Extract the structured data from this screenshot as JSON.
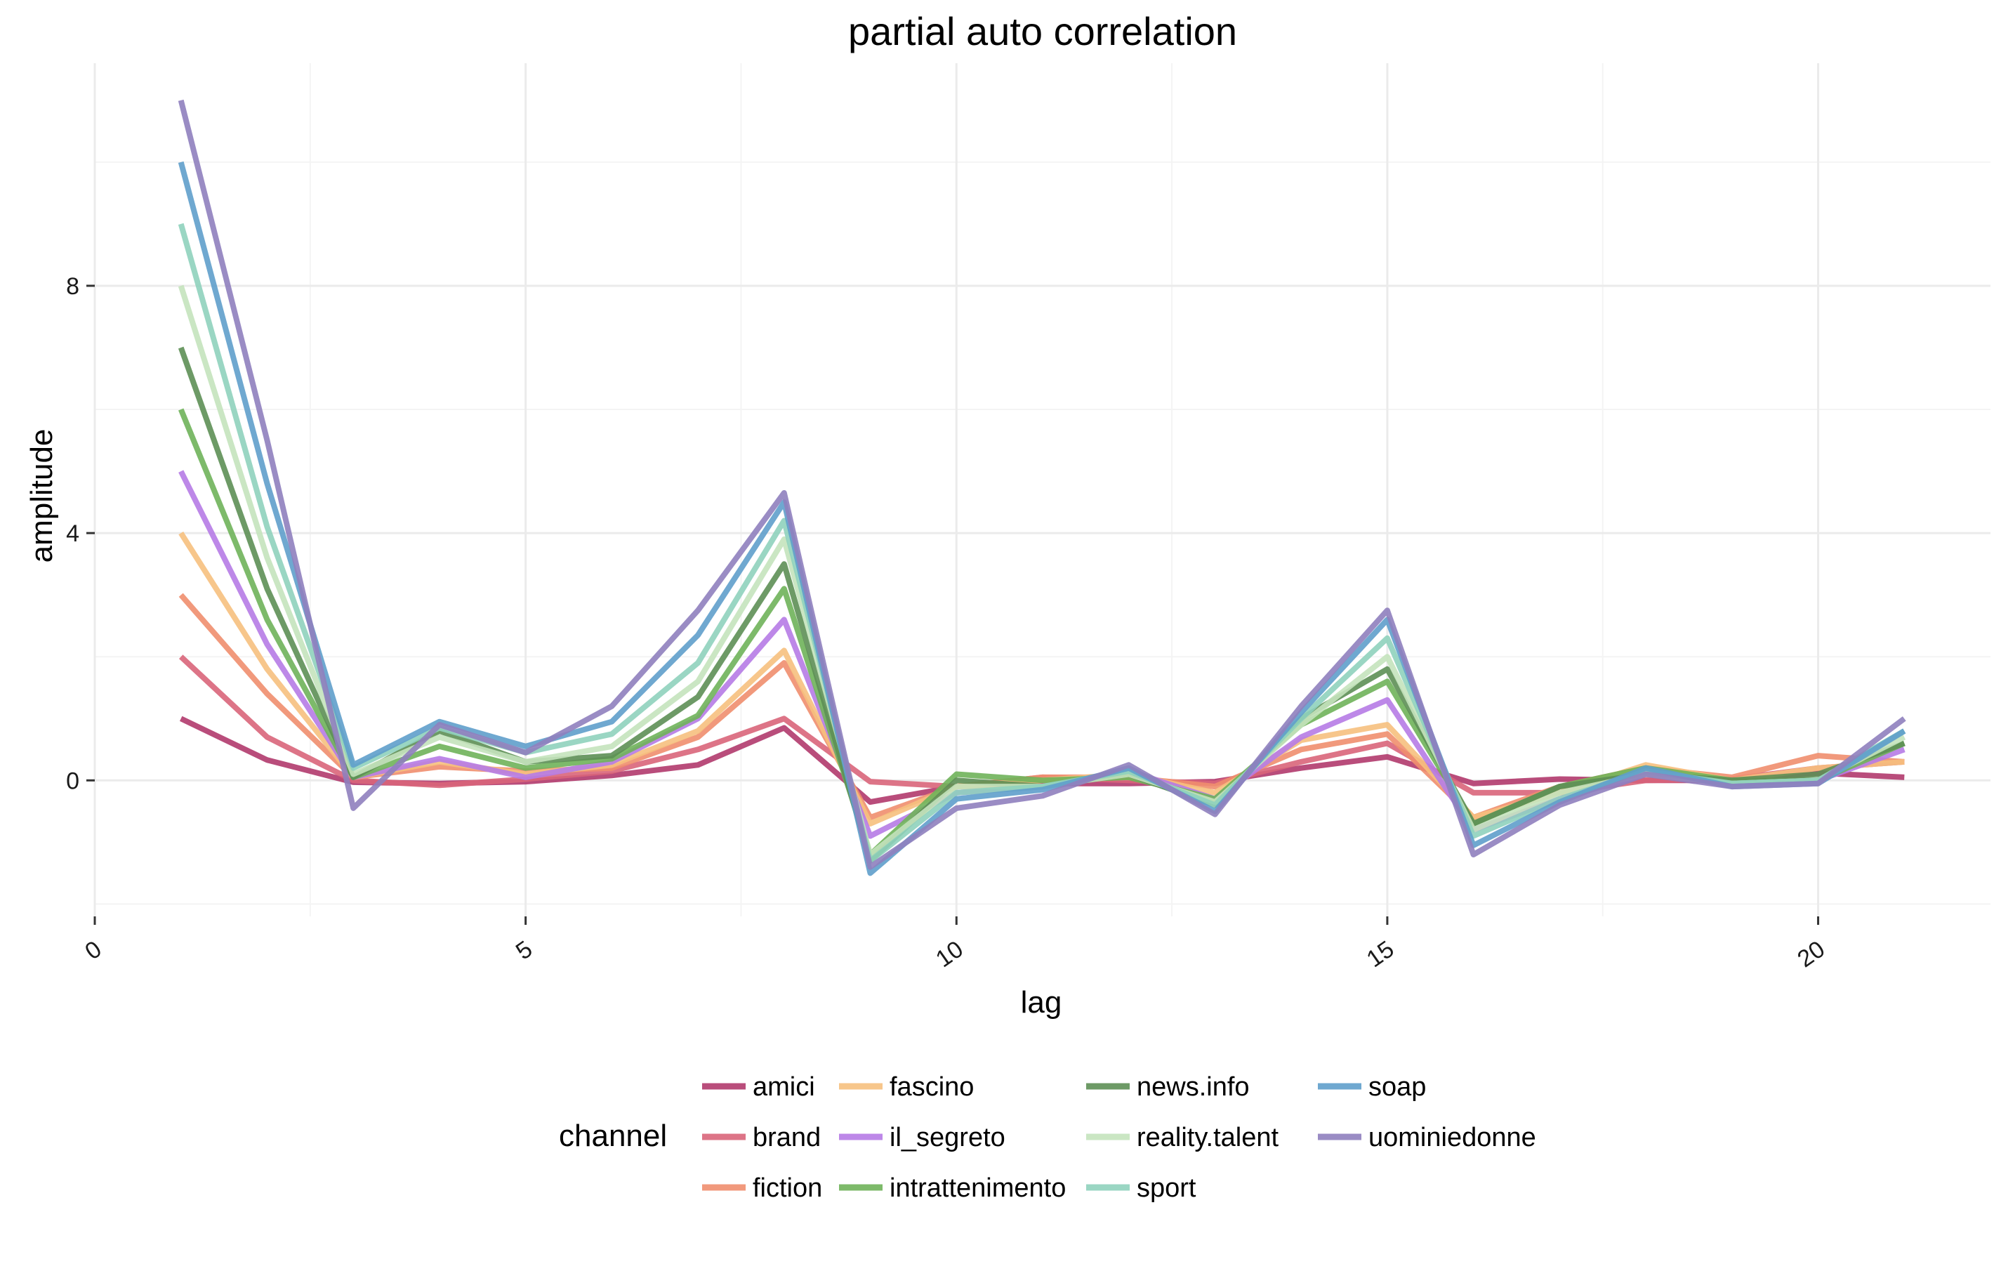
{
  "chart_data": {
    "type": "line",
    "title": "partial auto correlation",
    "xlabel": "lag",
    "ylabel": "amplitude",
    "xlim": [
      0,
      22
    ],
    "ylim": [
      -2.2,
      11.6
    ],
    "x_major_ticks": [
      0,
      5,
      10,
      15,
      20
    ],
    "x_minor_ticks": [
      2.5,
      7.5,
      12.5,
      17.5
    ],
    "y_major_ticks": [
      0,
      4,
      8
    ],
    "y_minor_ticks": [
      -2,
      2,
      6,
      10
    ],
    "grid": true,
    "legend_title": "channel",
    "legend_position": "bottom",
    "x": [
      1,
      2,
      3,
      4,
      5,
      6,
      7,
      8,
      9,
      10,
      11,
      12,
      13,
      14,
      15,
      16,
      17,
      18,
      19,
      20,
      21
    ],
    "series": [
      {
        "name": "amici",
        "color": "#b13a6d",
        "values": [
          1.0,
          0.33,
          -0.03,
          -0.05,
          -0.02,
          0.08,
          0.25,
          0.85,
          -0.35,
          -0.1,
          -0.05,
          -0.05,
          -0.02,
          0.2,
          0.38,
          -0.05,
          0.02,
          0.0,
          0.0,
          0.12,
          0.05
        ]
      },
      {
        "name": "brand",
        "color": "#d9657a",
        "values": [
          2.0,
          0.7,
          0.0,
          -0.08,
          0.02,
          0.15,
          0.5,
          1.0,
          -0.02,
          -0.1,
          0.05,
          0.0,
          -0.05,
          0.3,
          0.6,
          -0.2,
          -0.2,
          0.0,
          0.02,
          0.2,
          0.3
        ]
      },
      {
        "name": "fiction",
        "color": "#f08e6e",
        "values": [
          3.0,
          1.4,
          0.05,
          0.22,
          0.15,
          0.2,
          0.7,
          1.9,
          -0.6,
          -0.1,
          0.05,
          0.05,
          -0.1,
          0.5,
          0.75,
          -0.6,
          -0.1,
          0.2,
          0.05,
          0.4,
          0.3
        ]
      },
      {
        "name": "fascino",
        "color": "#f6c07e",
        "values": [
          4.0,
          1.8,
          0.05,
          0.3,
          0.1,
          0.25,
          0.8,
          2.1,
          -0.7,
          -0.1,
          0.0,
          0.1,
          -0.2,
          0.65,
          0.9,
          -0.6,
          -0.2,
          0.25,
          0.0,
          0.2,
          0.3
        ]
      },
      {
        "name": "il_segreto",
        "color": "#b67be6",
        "values": [
          5.0,
          2.2,
          0.05,
          0.35,
          0.05,
          0.3,
          1.0,
          2.6,
          -0.9,
          -0.2,
          -0.1,
          0.15,
          -0.3,
          0.7,
          1.3,
          -0.8,
          -0.3,
          0.1,
          -0.05,
          0.0,
          0.5
        ]
      },
      {
        "name": "intrattenimento",
        "color": "#6fb25a",
        "values": [
          6.0,
          2.6,
          0.05,
          0.55,
          0.2,
          0.35,
          1.05,
          3.1,
          -1.2,
          0.1,
          0.0,
          0.05,
          -0.3,
          0.9,
          1.6,
          -0.7,
          -0.1,
          0.2,
          0.0,
          0.0,
          0.6
        ]
      },
      {
        "name": "news.info",
        "color": "#5d8f55",
        "values": [
          7.0,
          3.1,
          0.05,
          0.8,
          0.3,
          0.4,
          1.35,
          3.5,
          -1.3,
          0.0,
          -0.1,
          0.1,
          -0.4,
          1.0,
          1.8,
          -0.7,
          -0.1,
          0.1,
          0.0,
          0.1,
          0.6
        ]
      },
      {
        "name": "reality.talent",
        "color": "#c4e3bc",
        "values": [
          8.0,
          3.6,
          0.1,
          0.7,
          0.3,
          0.55,
          1.6,
          3.9,
          -1.2,
          -0.1,
          -0.1,
          0.1,
          -0.35,
          0.9,
          2.0,
          -0.8,
          -0.2,
          0.1,
          -0.05,
          0.0,
          0.7
        ]
      },
      {
        "name": "sport",
        "color": "#8fd1bd",
        "values": [
          9.0,
          4.1,
          0.2,
          0.85,
          0.45,
          0.75,
          1.9,
          4.2,
          -1.3,
          -0.2,
          -0.1,
          0.15,
          -0.4,
          1.0,
          2.3,
          -0.9,
          -0.3,
          0.15,
          -0.05,
          0.0,
          0.8
        ]
      },
      {
        "name": "soap",
        "color": "#5f9fcb",
        "values": [
          10.0,
          4.8,
          0.25,
          0.95,
          0.55,
          0.95,
          2.35,
          4.5,
          -1.5,
          -0.3,
          -0.15,
          0.2,
          -0.5,
          1.1,
          2.6,
          -1.05,
          -0.35,
          0.2,
          -0.1,
          -0.05,
          0.8
        ]
      },
      {
        "name": "uominiedonne",
        "color": "#8f7fbe",
        "values": [
          11.0,
          5.5,
          -0.45,
          0.9,
          0.45,
          1.2,
          2.75,
          4.65,
          -1.4,
          -0.45,
          -0.25,
          0.25,
          -0.55,
          1.2,
          2.75,
          -1.2,
          -0.4,
          0.1,
          -0.1,
          -0.05,
          1.0
        ]
      }
    ]
  }
}
